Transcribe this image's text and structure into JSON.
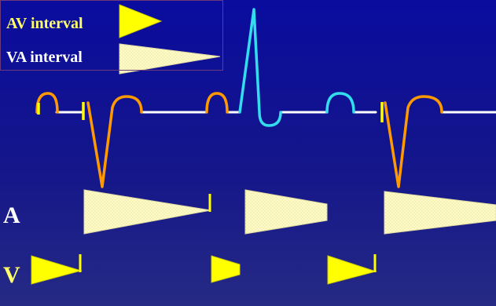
{
  "legend": {
    "av_label": "AV interval",
    "va_label": "VA interval"
  },
  "rows": {
    "a_label": "A",
    "v_label": "V"
  },
  "colors": {
    "background_top": "#0a0c9e",
    "background_bottom": "#262a84",
    "av_label_text": "#ffff66",
    "va_label_text": "#ffffff",
    "av_wedge_fill": "#ffff00",
    "va_wedge_fill": "#fffccc",
    "baseline": "#ffffff",
    "paced_complex": "#ff9900",
    "conducted_complex": "#33ddee",
    "pacing_spike": "#ffff00"
  }
}
